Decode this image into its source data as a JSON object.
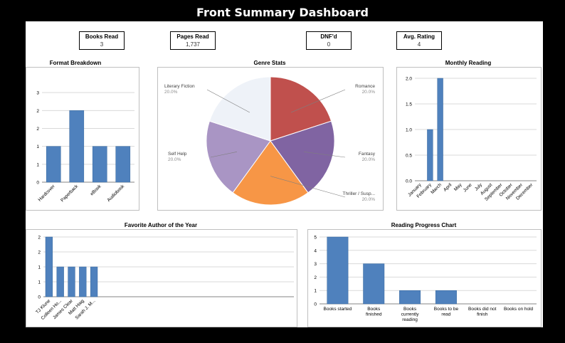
{
  "title": "Front Summary Dashboard",
  "kpis": [
    {
      "label": "Books Read",
      "value": "3"
    },
    {
      "label": "Pages Read",
      "value": "1,737"
    },
    {
      "label": "DNF'd",
      "value": "0"
    },
    {
      "label": "Avg. Rating",
      "value": "4"
    }
  ],
  "colors": {
    "bar": "#4f81bd",
    "grid": "#d9d9d9",
    "axis": "#868686",
    "text": "#595959"
  },
  "chart_data": [
    {
      "type": "bar",
      "title": "Format Breakdown",
      "categories": [
        "Hardcover",
        "Paperback",
        "eBook",
        "Audiobook"
      ],
      "values": [
        1,
        2,
        1,
        1
      ],
      "ylim": [
        0,
        3
      ],
      "yticks": [
        "0",
        "1",
        "1",
        "2",
        "2",
        "3"
      ],
      "ytick_values": [
        0,
        0.5,
        1,
        1.5,
        2,
        2.5
      ],
      "grid": true
    },
    {
      "type": "pie",
      "title": "Genre Stats",
      "slices": [
        {
          "label": "Romance",
          "value": 20.0,
          "pct": "20.0%",
          "color": "#c0504d"
        },
        {
          "label": "Fantasy",
          "value": 20.0,
          "pct": "20.0%",
          "color": "#8064a2"
        },
        {
          "label": "Thriller / Susp...",
          "value": 20.0,
          "pct": "20.0%",
          "color": "#f79646"
        },
        {
          "label": "Self Help",
          "value": 20.0,
          "pct": "20.0%",
          "color": "#a995c4"
        },
        {
          "label": "Literary Fiction",
          "value": 20.0,
          "pct": "20.0%",
          "color": "#eef2f8"
        }
      ]
    },
    {
      "type": "bar",
      "title": "Monthly Reading",
      "categories": [
        "January",
        "February",
        "March",
        "April",
        "May",
        "June",
        "July",
        "August",
        "September",
        "October",
        "November",
        "December"
      ],
      "values": [
        0,
        1,
        2,
        0,
        0,
        0,
        0,
        0,
        0,
        0,
        0,
        0
      ],
      "ylim": [
        0,
        2
      ],
      "yticks": [
        "0.0",
        "0.5",
        "1.0",
        "1.5",
        "2.0"
      ],
      "ytick_values": [
        0,
        0.5,
        1,
        1.5,
        2
      ],
      "grid": true
    },
    {
      "type": "bar",
      "title": "Favorite Author of the Year",
      "categories": [
        "TJ Klune",
        "Colleen Ho...",
        "James Clear",
        "Matt Haig",
        "Sarah J. M..."
      ],
      "values": [
        2,
        1,
        1,
        1,
        1
      ],
      "ylim": [
        0,
        2
      ],
      "yticks": [
        "0",
        "1",
        "1",
        "2",
        "2"
      ],
      "ytick_values": [
        0,
        0.5,
        1,
        1.5,
        2
      ],
      "grid": true
    },
    {
      "type": "bar",
      "title": "Reading Progress Chart",
      "categories": [
        "Books started",
        "Books finished",
        "Books currently reading",
        "Books to be read",
        "Books did not finish",
        "Books on hold"
      ],
      "values": [
        5,
        3,
        1,
        1,
        0,
        0
      ],
      "ylim": [
        0,
        5
      ],
      "yticks": [
        "0",
        "1",
        "2",
        "3",
        "4",
        "5"
      ],
      "ytick_values": [
        0,
        1,
        2,
        3,
        4,
        5
      ],
      "grid": true
    }
  ]
}
